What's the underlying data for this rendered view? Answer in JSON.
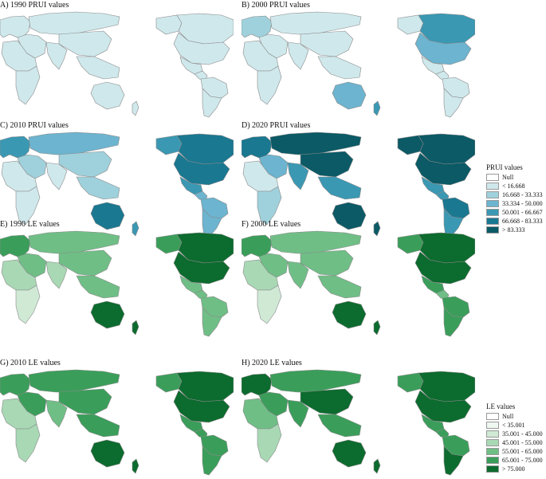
{
  "panels": [
    {
      "title": "A) 1990 PRUI values",
      "scheme": "pr",
      "colors": {
        "europe": 1,
        "russia": 1,
        "mideast": 1,
        "india": 1,
        "china": 1,
        "seasia": 1,
        "africa_n": 1,
        "africa_s": 1,
        "australia": 1,
        "nz": 1,
        "alaska": 1,
        "canada": 1,
        "usa": 1,
        "mexico": 1,
        "camerica": 1,
        "samerica_n": 1,
        "samerica_s": 1
      }
    },
    {
      "title": "B) 2000 PRUI values",
      "scheme": "pr",
      "colors": {
        "europe": 2,
        "russia": 1,
        "mideast": 1,
        "india": 1,
        "china": 1,
        "seasia": 1,
        "africa_n": 1,
        "africa_s": 1,
        "australia": 3,
        "nz": 4,
        "alaska": 1,
        "canada": 4,
        "usa": 3,
        "mexico": 1,
        "camerica": 1,
        "samerica_n": 1,
        "samerica_s": 1
      }
    },
    {
      "title": "C) 2010 PRUI values",
      "scheme": "pr",
      "colors": {
        "europe": 4,
        "russia": 3,
        "mideast": 2,
        "india": 1,
        "china": 2,
        "seasia": 2,
        "africa_n": 1,
        "africa_s": 1,
        "australia": 5,
        "nz": 4,
        "alaska": 4,
        "canada": 5,
        "usa": 5,
        "mexico": 4,
        "camerica": 3,
        "samerica_n": 3,
        "samerica_s": 3
      }
    },
    {
      "title": "D) 2020 PRUI values",
      "scheme": "pr",
      "colors": {
        "europe": 5,
        "russia": 6,
        "mideast": 3,
        "india": 4,
        "china": 6,
        "seasia": 4,
        "africa_n": 1,
        "africa_s": 2,
        "australia": 6,
        "nz": 6,
        "alaska": 6,
        "canada": 6,
        "usa": 6,
        "mexico": 4,
        "camerica": 4,
        "samerica_n": 5,
        "samerica_s": 4
      }
    },
    {
      "title": "E) 1990 LE values",
      "scheme": "le",
      "colors": {
        "europe": 5,
        "russia": 4,
        "mideast": 4,
        "india": 3,
        "china": 4,
        "seasia": 4,
        "africa_n": 3,
        "africa_s": 2,
        "australia": 6,
        "nz": 6,
        "alaska": 5,
        "canada": 6,
        "usa": 6,
        "mexico": 4,
        "camerica": 4,
        "samerica_n": 4,
        "samerica_s": 4
      }
    },
    {
      "title": "F) 2000 LE values",
      "scheme": "le",
      "colors": {
        "europe": 5,
        "russia": 4,
        "mideast": 4,
        "india": 4,
        "china": 4,
        "seasia": 4,
        "africa_n": 3,
        "africa_s": 2,
        "australia": 6,
        "nz": 6,
        "alaska": 5,
        "canada": 6,
        "usa": 6,
        "mexico": 5,
        "camerica": 4,
        "samerica_n": 5,
        "samerica_s": 5
      }
    },
    {
      "title": "G) 2010 LE values",
      "scheme": "le",
      "colors": {
        "europe": 5,
        "russia": 5,
        "mideast": 5,
        "india": 4,
        "china": 5,
        "seasia": 5,
        "africa_n": 3,
        "africa_s": 3,
        "australia": 6,
        "nz": 6,
        "alaska": 5,
        "canada": 6,
        "usa": 6,
        "mexico": 5,
        "camerica": 5,
        "samerica_n": 5,
        "samerica_s": 5
      }
    },
    {
      "title": "H) 2020 LE values",
      "scheme": "le",
      "colors": {
        "europe": 6,
        "russia": 5,
        "mideast": 5,
        "india": 5,
        "china": 6,
        "seasia": 5,
        "africa_n": 4,
        "africa_s": 3,
        "australia": 6,
        "nz": 6,
        "alaska": 5,
        "canada": 6,
        "usa": 6,
        "mexico": 5,
        "camerica": 5,
        "samerica_n": 5,
        "samerica_s": 6
      }
    }
  ],
  "legend_pr": {
    "title": "PRUI values",
    "items": [
      {
        "label": "Null",
        "color": "#ffffff"
      },
      {
        "label": "< 16.668",
        "color": "#cfe8ec"
      },
      {
        "label": "16.668 - 33.333",
        "color": "#9fd1dc"
      },
      {
        "label": "33.334 - 50.000",
        "color": "#6cb4cf"
      },
      {
        "label": "50.001 - 66.667",
        "color": "#3a98b3"
      },
      {
        "label": "66.668 - 83.333",
        "color": "#1a7891"
      },
      {
        "label": "> 83.333",
        "color": "#0b5a66"
      }
    ]
  },
  "legend_le": {
    "title": "LE values",
    "items": [
      {
        "label": "Null",
        "color": "#ffffff"
      },
      {
        "label": "< 35.001",
        "color": "#eef7f0"
      },
      {
        "label": "35.001 - 45.000",
        "color": "#cfe9d5"
      },
      {
        "label": "45.001 - 55.000",
        "color": "#a8d8b4"
      },
      {
        "label": "55.001 - 65.000",
        "color": "#6fbe86"
      },
      {
        "label": "65.001 - 75.000",
        "color": "#3a9e5a"
      },
      {
        "label": "> 75.000",
        "color": "#0c6b2e"
      }
    ]
  }
}
